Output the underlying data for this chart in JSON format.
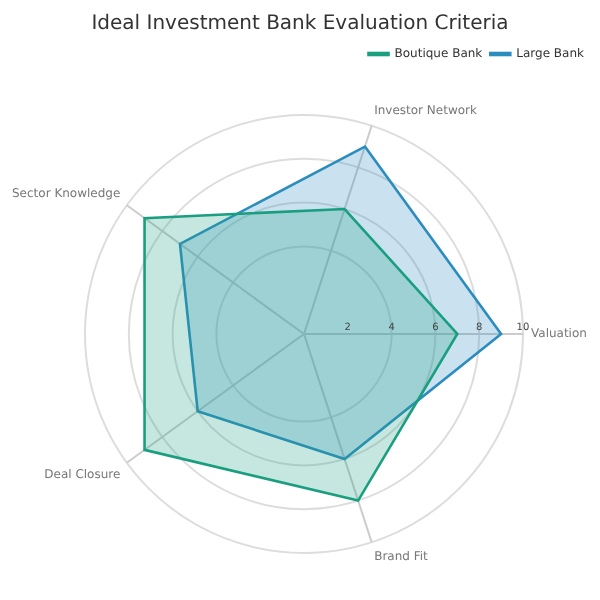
{
  "chart_data": {
    "type": "radar",
    "title": "Ideal Investment Bank Evaluation Criteria",
    "categories": [
      "Investor Network",
      "Valuation",
      "Brand Fit",
      "Deal Closure",
      "Sector Knowledge"
    ],
    "series": [
      {
        "name": "Boutique Bank",
        "color": "#1a9e80",
        "values": [
          6,
          7,
          8,
          9,
          9
        ]
      },
      {
        "name": "Large Bank",
        "color": "#2b8cbe",
        "values": [
          9,
          9,
          6,
          6,
          7
        ]
      }
    ],
    "ylim": [
      0,
      10
    ],
    "yticks": [
      2,
      4,
      6,
      8,
      10
    ],
    "grid": true,
    "legend": "top right"
  }
}
